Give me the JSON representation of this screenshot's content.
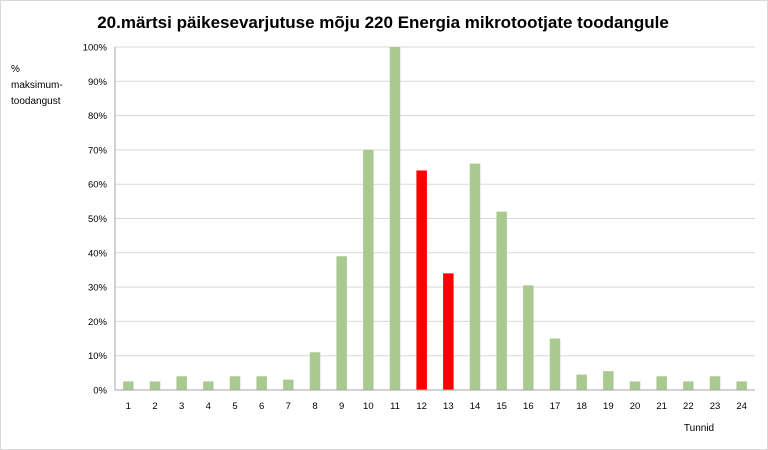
{
  "chart_data": {
    "type": "bar",
    "title": "20.märtsi päikesevarjutuse mõju 220 Energia mikrotootjate toodangule",
    "ylabel": [
      "%",
      "maksimum-",
      "toodangust"
    ],
    "xlabel": "Tunnid",
    "ylim": [
      0,
      100
    ],
    "yticks": [
      "0%",
      "10%",
      "20%",
      "30%",
      "40%",
      "50%",
      "60%",
      "70%",
      "80%",
      "90%",
      "100%"
    ],
    "categories": [
      "1",
      "2",
      "3",
      "4",
      "5",
      "6",
      "7",
      "8",
      "9",
      "10",
      "11",
      "12",
      "13",
      "14",
      "15",
      "16",
      "17",
      "18",
      "19",
      "20",
      "21",
      "22",
      "23",
      "24"
    ],
    "values": [
      2.5,
      2.5,
      4,
      2.5,
      4,
      4,
      3,
      11,
      39,
      70,
      100,
      64,
      34,
      66,
      52,
      30.5,
      15,
      4.5,
      5.5,
      2.5,
      4,
      2.5,
      4,
      2.5
    ],
    "highlight_categories": [
      "12",
      "13"
    ],
    "grid": true,
    "colors": {
      "bar": "#a9c990",
      "highlight": "#ff0000",
      "grid": "#d9d9d9",
      "axis": "#a6a6a6"
    }
  }
}
